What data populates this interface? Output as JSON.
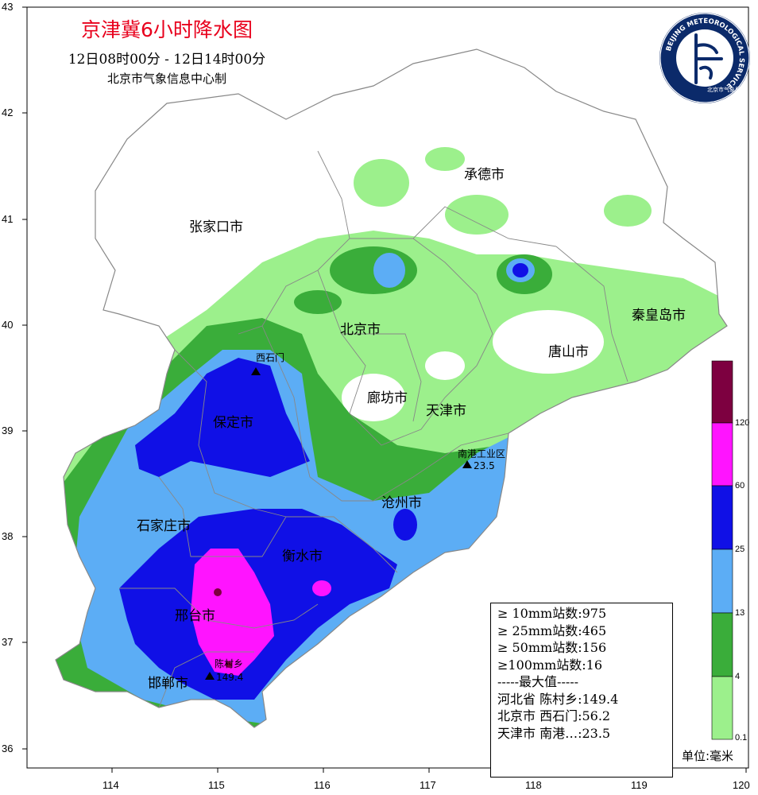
{
  "header": {
    "title": "京津冀6小时降水图",
    "subtitle": "12日08时00分 - 12日14时00分",
    "producer": "北京市气象信息中心制"
  },
  "logo": {
    "ring_text": "BEIJING METEOROLOGICAL SERVICE",
    "inner_text": "北京市气象局",
    "icon": "beijing-meteorological-service-logo"
  },
  "axes": {
    "lat_ticks": [
      "43",
      "42",
      "41",
      "40",
      "39",
      "38",
      "37",
      "36"
    ],
    "lon_ticks": [
      "114",
      "115",
      "116",
      "117",
      "118",
      "119",
      "120"
    ]
  },
  "cities": [
    {
      "key": "zjk",
      "name": "张家口市"
    },
    {
      "key": "cd",
      "name": "承德市"
    },
    {
      "key": "bj",
      "name": "北京市"
    },
    {
      "key": "qhd",
      "name": "秦皇岛市"
    },
    {
      "key": "ts",
      "name": "唐山市"
    },
    {
      "key": "lf",
      "name": "廊坊市"
    },
    {
      "key": "tj",
      "name": "天津市"
    },
    {
      "key": "bd",
      "name": "保定市"
    },
    {
      "key": "cz",
      "name": "沧州市"
    },
    {
      "key": "sjz",
      "name": "石家庄市"
    },
    {
      "key": "hs",
      "name": "衡水市"
    },
    {
      "key": "xt",
      "name": "邢台市"
    },
    {
      "key": "hd",
      "name": "邯郸市"
    }
  ],
  "stations": [
    {
      "name": "西石门",
      "value": ""
    },
    {
      "name": "南港工业区",
      "value": "23.5"
    },
    {
      "name": "陈村乡",
      "value": "149.4"
    }
  ],
  "stats": {
    "lines": [
      "≥ 10mm站数:975",
      "≥ 25mm站数:465",
      "≥ 50mm站数:156",
      "≥100mm站数:16",
      "-----最大值-----",
      "河北省 陈村乡:149.4",
      "北京市 西石门:56.2",
      "天津市 南港…:23.5"
    ]
  },
  "legend": {
    "unit": "单位:毫米",
    "ticks": [
      "120",
      "60",
      "25",
      "13",
      "4",
      "0.1"
    ],
    "colors": [
      "#7d0040",
      "#ff14ff",
      "#1010e6",
      "#5cadf5",
      "#3aad3a",
      "#9cf08c"
    ]
  },
  "colors": {
    "light_green": "#9cf08c",
    "green": "#3aad3a",
    "light_blue": "#5cadf5",
    "blue": "#1010e6",
    "magenta": "#ff14ff",
    "maroon": "#7d0040",
    "title_red": "#e8001c"
  }
}
